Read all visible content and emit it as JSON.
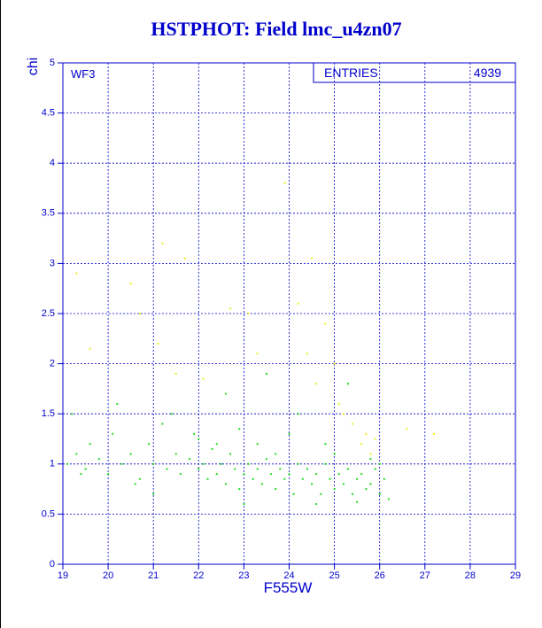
{
  "chart_data": {
    "type": "scatter",
    "title": "HSTPHOT: Field lmc_u4zn07",
    "x_label": "F555W",
    "y_label": "chi",
    "panel_label": "WF3",
    "stats": {
      "label": "ENTRIES",
      "value": 4939
    },
    "xlim": [
      19,
      29
    ],
    "ylim": [
      0,
      5
    ],
    "xticks": [
      19,
      20,
      21,
      22,
      23,
      24,
      25,
      26,
      27,
      28,
      29
    ],
    "yticks": [
      0,
      0.5,
      1,
      1.5,
      2,
      2.5,
      3,
      3.5,
      4,
      4.5,
      5
    ],
    "grid": true,
    "series": [
      {
        "color": "#22dd22",
        "x": [
          19.1,
          19.3,
          19.5,
          19.6,
          19.8,
          20.0,
          20.1,
          20.3,
          20.5,
          20.7,
          20.9,
          21.0,
          21.2,
          21.3,
          21.5,
          21.6,
          21.8,
          21.9,
          22.0,
          22.1,
          22.2,
          22.3,
          22.4,
          22.5,
          22.6,
          22.7,
          22.8,
          22.9,
          23.0,
          23.1,
          23.2,
          23.3,
          23.4,
          23.5,
          23.6,
          23.7,
          23.8,
          23.9,
          24.0,
          24.1,
          24.2,
          24.3,
          24.4,
          24.5,
          24.6,
          24.7,
          24.8,
          24.9,
          25.0,
          25.1,
          25.2,
          25.3,
          25.4,
          25.5,
          25.6,
          25.7,
          25.8,
          25.9,
          26.0,
          26.1,
          26.2,
          19.2,
          20.2,
          21.4,
          22.6,
          23.5,
          24.2,
          25.3,
          23.0,
          24.6,
          25.5,
          22.0,
          23.3,
          24.0,
          25.0,
          21.0,
          22.9,
          24.8,
          20.6,
          19.4,
          26.0,
          25.8,
          23.7,
          22.4
        ],
        "values": [
          1.0,
          1.1,
          0.95,
          1.2,
          1.05,
          0.9,
          1.3,
          1.0,
          1.1,
          0.85,
          1.2,
          1.0,
          1.4,
          0.95,
          1.1,
          0.9,
          1.05,
          1.3,
          0.95,
          1.0,
          0.85,
          1.15,
          0.9,
          1.0,
          0.8,
          1.1,
          0.95,
          0.75,
          0.9,
          1.0,
          0.85,
          0.95,
          0.8,
          1.05,
          0.9,
          0.75,
          0.95,
          0.85,
          0.9,
          0.7,
          1.0,
          0.85,
          0.95,
          0.8,
          0.9,
          0.7,
          1.0,
          0.85,
          0.75,
          0.9,
          0.8,
          0.95,
          0.7,
          0.85,
          0.9,
          0.75,
          0.8,
          0.95,
          0.7,
          0.85,
          0.65,
          1.5,
          1.6,
          1.5,
          1.7,
          1.9,
          1.5,
          1.8,
          0.6,
          0.6,
          0.62,
          1.25,
          1.2,
          1.3,
          1.1,
          0.7,
          1.35,
          1.2,
          0.8,
          0.9,
          1.0,
          1.05,
          1.1,
          1.2
        ]
      },
      {
        "color": "#eeee22",
        "x": [
          19.3,
          20.5,
          21.2,
          21.7,
          23.9,
          24.5,
          22.7,
          23.1,
          24.2,
          24.8,
          25.0,
          24.4,
          25.2,
          25.4,
          25.6,
          25.8,
          25.9,
          26.6,
          27.2,
          21.5,
          22.1,
          23.3,
          24.6,
          25.1,
          20.7,
          21.1,
          25.7,
          19.6
        ],
        "values": [
          2.9,
          2.8,
          3.2,
          3.05,
          3.8,
          3.05,
          2.55,
          2.5,
          2.6,
          2.4,
          2.0,
          2.1,
          1.5,
          1.4,
          1.2,
          1.1,
          1.25,
          1.35,
          1.3,
          1.9,
          1.85,
          2.1,
          1.8,
          1.6,
          2.5,
          2.2,
          1.3,
          2.15
        ]
      }
    ]
  }
}
